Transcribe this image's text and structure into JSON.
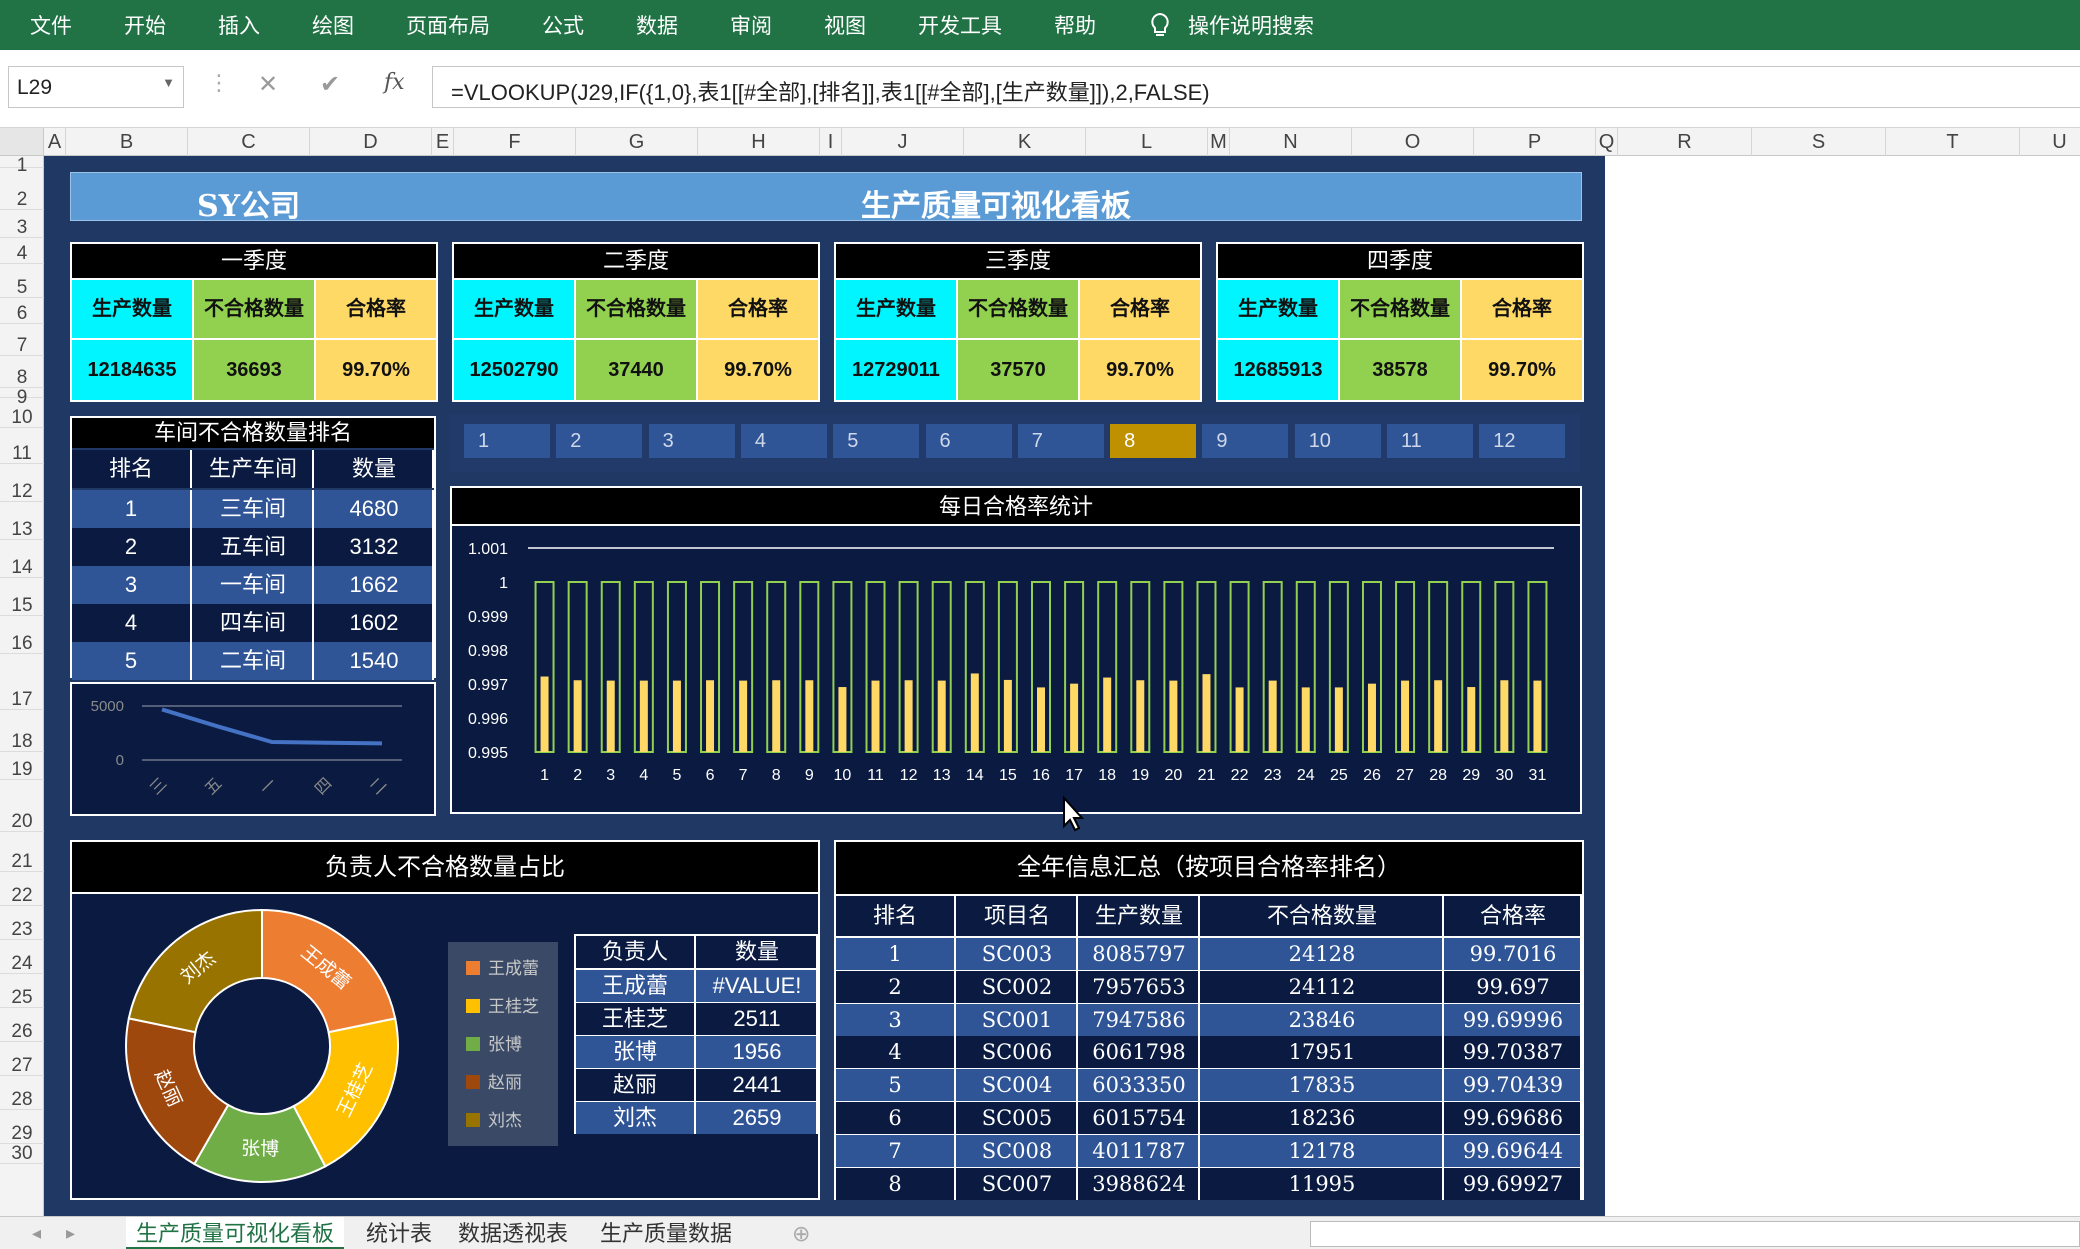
{
  "ribbon": {
    "tabs": [
      "文件",
      "开始",
      "插入",
      "绘图",
      "页面布局",
      "公式",
      "数据",
      "审阅",
      "视图",
      "开发工具",
      "帮助"
    ],
    "search": "操作说明搜索"
  },
  "formula_bar": {
    "name_box": "L29",
    "formula": "=VLOOKUP(J29,IF({1,0},表1[[#全部],[排名]],表1[[#全部],[生产数量]]),2,FALSE)",
    "cancel": "✕",
    "enter": "✔",
    "fx": "fx"
  },
  "columns": [
    "A",
    "B",
    "C",
    "D",
    "E",
    "F",
    "G",
    "H",
    "I",
    "J",
    "K",
    "L",
    "M",
    "N",
    "O",
    "P",
    "Q",
    "R",
    "S",
    "T",
    "U"
  ],
  "rows": [
    "1",
    "2",
    "3",
    "4",
    "5",
    "6",
    "7",
    "8",
    "9",
    "10",
    "11",
    "12",
    "13",
    "14",
    "15",
    "16",
    "17",
    "18",
    "19",
    "20",
    "21",
    "22",
    "23",
    "24",
    "25",
    "26",
    "27",
    "28",
    "29",
    "30"
  ],
  "dashboard": {
    "company": "SY公司",
    "title": "生产质量可视化看板",
    "quarters": [
      {
        "name": "一季度",
        "h1": "生产数量",
        "h2": "不合格数量",
        "h3": "合格率",
        "v1": "12184635",
        "v2": "36693",
        "v3": "99.70%"
      },
      {
        "name": "二季度",
        "h1": "生产数量",
        "h2": "不合格数量",
        "h3": "合格率",
        "v1": "12502790",
        "v2": "37440",
        "v3": "99.70%"
      },
      {
        "name": "三季度",
        "h1": "生产数量",
        "h2": "不合格数量",
        "h3": "合格率",
        "v1": "12729011",
        "v2": "37570",
        "v3": "99.70%"
      },
      {
        "name": "四季度",
        "h1": "生产数量",
        "h2": "不合格数量",
        "h3": "合格率",
        "v1": "12685913",
        "v2": "38578",
        "v3": "99.70%"
      }
    ],
    "ranking": {
      "title": "车间不合格数量排名",
      "headers": [
        "排名",
        "生产车间",
        "数量"
      ],
      "rows": [
        [
          "1",
          "三车间",
          "4680"
        ],
        [
          "2",
          "五车间",
          "3132"
        ],
        [
          "3",
          "一车间",
          "1662"
        ],
        [
          "4",
          "四车间",
          "1602"
        ],
        [
          "5",
          "二车间",
          "1540"
        ]
      ]
    },
    "months": [
      "1",
      "2",
      "3",
      "4",
      "5",
      "6",
      "7",
      "8",
      "9",
      "10",
      "11",
      "12"
    ],
    "selected_month": "8",
    "daily_title": "每日合格率统计",
    "owner_title": "负责人不合格数量占比",
    "owner_table": {
      "headers": [
        "负责人",
        "数量"
      ],
      "rows": [
        [
          "王成蕾",
          "#VALUE!"
        ],
        [
          "王桂芝",
          "2511"
        ],
        [
          "张博",
          "1956"
        ],
        [
          "赵丽",
          "2441"
        ],
        [
          "刘杰",
          "2659"
        ]
      ]
    },
    "annual": {
      "title": "全年信息汇总（按项目合格率排名）",
      "headers": [
        "排名",
        "项目名",
        "生产数量",
        "不合格数量",
        "合格率"
      ],
      "rows": [
        [
          "1",
          "SC003",
          "8085797",
          "24128",
          "99.7016"
        ],
        [
          "2",
          "SC002",
          "7957653",
          "24112",
          "99.697"
        ],
        [
          "3",
          "SC001",
          "7947586",
          "23846",
          "99.69996"
        ],
        [
          "4",
          "SC006",
          "6061798",
          "17951",
          "99.70387"
        ],
        [
          "5",
          "SC004",
          "6033350",
          "17835",
          "99.70439"
        ],
        [
          "6",
          "SC005",
          "6015754",
          "18236",
          "99.69686"
        ],
        [
          "7",
          "SC008",
          "4011787",
          "12178",
          "99.69644"
        ],
        [
          "8",
          "SC007",
          "3988624",
          "11995",
          "99.69927"
        ]
      ]
    }
  },
  "sheet_tabs": [
    "生产质量可视化看板",
    "统计表",
    "数据透视表",
    "生产质量数据"
  ],
  "colors": {
    "ribbon": "#217346",
    "dash_bg": "#1f3864",
    "cyan": "#00f5ff",
    "green": "#92d050",
    "yellow": "#ffd966",
    "selected": "#bf9000"
  },
  "chart_data": [
    {
      "type": "line",
      "title": "",
      "categories": [
        "三车间",
        "五车间",
        "一车间",
        "四车间",
        "二车间"
      ],
      "category_labels": [
        "三",
        "五",
        "一",
        "四",
        "二"
      ],
      "values": [
        4680,
        3132,
        1662,
        1602,
        1540
      ],
      "ylim": [
        0,
        5000
      ],
      "yticks": [
        "5000",
        "0"
      ]
    },
    {
      "type": "bar",
      "title": "每日合格率统计",
      "x": [
        "1",
        "2",
        "3",
        "4",
        "5",
        "6",
        "7",
        "8",
        "9",
        "10",
        "11",
        "12",
        "13",
        "14",
        "15",
        "16",
        "17",
        "18",
        "19",
        "20",
        "21",
        "22",
        "23",
        "24",
        "25",
        "26",
        "27",
        "28",
        "29",
        "30",
        "31"
      ],
      "series": [
        {
          "values": [
            0.99722,
            0.99711,
            0.9971,
            0.9971,
            0.9971,
            0.99711,
            0.9971,
            0.99711,
            0.99711,
            0.99691,
            0.9971,
            0.99711,
            0.9971,
            0.99731,
            0.99712,
            0.9969,
            0.99701,
            0.99719,
            0.99711,
            0.9971,
            0.99729,
            0.9969,
            0.9971,
            0.9969,
            0.9969,
            0.99701,
            0.9971,
            0.99711,
            0.99691,
            0.99711,
            0.9971
          ]
        },
        {
          "values": [
            1,
            1,
            1,
            1,
            1,
            1,
            1,
            1,
            1,
            1,
            1,
            1,
            1,
            1,
            1,
            1,
            1,
            1,
            1,
            1,
            1,
            1,
            1,
            1,
            1,
            1,
            1,
            1,
            1,
            1,
            1
          ]
        }
      ],
      "ylim": [
        0.995,
        1.001
      ],
      "yticks": [
        "1.001",
        "1",
        "0.999",
        "0.998",
        "0.997",
        "0.996",
        "0.995"
      ]
    },
    {
      "type": "pie",
      "title": "负责人不合格数量占比",
      "categories": [
        "王成蕾",
        "王桂芝",
        "张博",
        "赵丽",
        "刘杰"
      ],
      "values": [
        2660,
        2511,
        1956,
        2441,
        2659
      ],
      "colors": [
        "#ed7d31",
        "#ffc000",
        "#70ad47",
        "#9e480e",
        "#997300"
      ]
    }
  ]
}
